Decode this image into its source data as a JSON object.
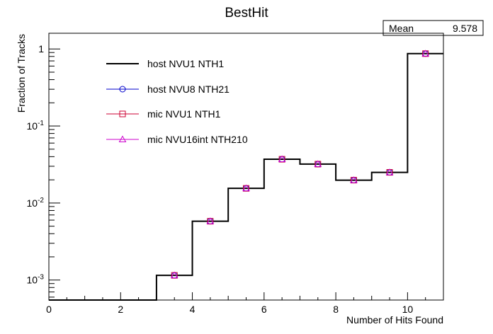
{
  "chart_data": {
    "type": "line",
    "title": "BestHit",
    "xlabel": "Number of Hits Found",
    "ylabel": "Fraction of Tracks",
    "xlim": [
      0,
      11
    ],
    "ylim": [
      0.00055,
      1.6
    ],
    "yscale": "log",
    "x_ticks": [
      0,
      2,
      4,
      6,
      8,
      10
    ],
    "y_ticks": [
      {
        "value": 1,
        "base": "1",
        "exp": ""
      },
      {
        "value": 0.1,
        "base": "10",
        "exp": "-1"
      },
      {
        "value": 0.01,
        "base": "10",
        "exp": "-2"
      },
      {
        "value": 0.001,
        "base": "10",
        "exp": "-3"
      }
    ],
    "stats": {
      "label": "Mean",
      "value": "9.578"
    },
    "legend_position": "top-left",
    "bin_edges": [
      0,
      1,
      2,
      3,
      4,
      5,
      6,
      7,
      8,
      9,
      10,
      11
    ],
    "bin_centers": [
      0.5,
      1.5,
      2.5,
      3.5,
      4.5,
      5.5,
      6.5,
      7.5,
      8.5,
      9.5,
      10.5
    ],
    "series": [
      {
        "name": "host NVU1 NTH1",
        "style": "line",
        "color": "#000000",
        "values": [
          0,
          0,
          0,
          0.00115,
          0.0058,
          0.0155,
          0.037,
          0.032,
          0.0198,
          0.025,
          0.87
        ]
      },
      {
        "name": "host NVU8 NTH21",
        "style": "circle",
        "color": "#0000cc",
        "values": [
          0,
          0,
          0,
          0.00115,
          0.0058,
          0.0155,
          0.037,
          0.032,
          0.0198,
          0.025,
          0.87
        ]
      },
      {
        "name": "mic NVU1 NTH1",
        "style": "square",
        "color": "#cc0033",
        "values": [
          0,
          0,
          0,
          0.00115,
          0.0058,
          0.0155,
          0.037,
          0.032,
          0.0198,
          0.025,
          0.87
        ]
      },
      {
        "name": "mic NVU16int NTH210",
        "style": "triangle",
        "color": "#cc00cc",
        "values": [
          0,
          0,
          0,
          0.00115,
          0.0058,
          0.0155,
          0.037,
          0.032,
          0.0198,
          0.025,
          0.87
        ]
      }
    ]
  }
}
